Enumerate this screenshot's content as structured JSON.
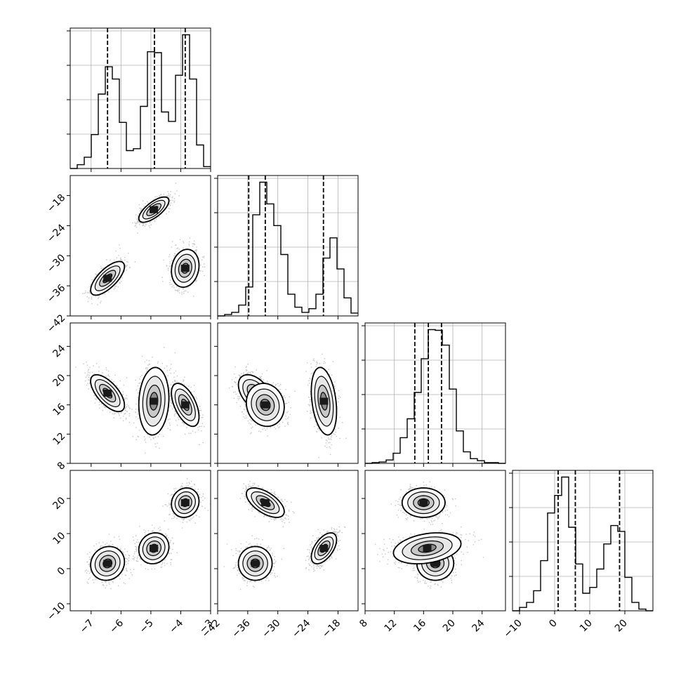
{
  "chart_data": {
    "type": "corner",
    "grid": true,
    "parameters": [
      {
        "ticks": [
          -7,
          -6,
          -5,
          -4,
          -3
        ],
        "tick_labels": [
          "−7",
          "−6",
          "−5",
          "−4",
          "−3"
        ],
        "range": [
          -7.7,
          -3.0
        ],
        "quantiles": [
          -6.45,
          -4.88,
          -3.85
        ],
        "histogram": {
          "edges_start": -7.7,
          "bin_width": 0.235,
          "counts": [
            0,
            0.04,
            0.12,
            0.36,
            0.79,
            1.08,
            0.95,
            0.49,
            0.19,
            0.21,
            0.66,
            1.24,
            1.23,
            0.6,
            0.5,
            0.99,
            1.42,
            0.95,
            0.25,
            0.02
          ]
        }
      },
      {
        "ticks": [
          -42,
          -36,
          -30,
          -24,
          -18
        ],
        "tick_labels": [
          "−42",
          "−36",
          "−30",
          "−24",
          "−18"
        ],
        "range": [
          -42.0,
          -14.0
        ],
        "quantiles": [
          -35.8,
          -32.5,
          -20.9
        ],
        "histogram": {
          "edges_start": -42.0,
          "bin_width": 1.4,
          "counts": [
            0,
            0.02,
            0.05,
            0.15,
            0.4,
            1.4,
            1.85,
            1.55,
            1.25,
            0.85,
            0.3,
            0.12,
            0.05,
            0.1,
            0.3,
            0.8,
            1.08,
            0.65,
            0.25,
            0.04
          ]
        }
      },
      {
        "ticks": [
          8,
          12,
          16,
          20,
          24
        ],
        "tick_labels": [
          "8",
          "12",
          "16",
          "20",
          "24"
        ],
        "range": [
          8.0,
          27.2
        ],
        "quantiles": [
          14.8,
          16.65,
          18.45
        ],
        "histogram": {
          "edges_start": 8.0,
          "bin_width": 0.96,
          "counts": [
            0,
            0.01,
            0.02,
            0.05,
            0.15,
            0.38,
            0.66,
            1.05,
            1.55,
            1.98,
            1.97,
            1.75,
            1.1,
            0.48,
            0.17,
            0.07,
            0.04,
            0.01,
            0.01,
            0
          ]
        }
      },
      {
        "ticks": [
          -10,
          0,
          10,
          20
        ],
        "tick_labels": [
          "−10",
          "0",
          "10",
          "20"
        ],
        "range": [
          -12.0,
          28.0
        ],
        "quantiles": [
          1.0,
          5.9,
          18.5
        ],
        "histogram": {
          "edges_start": -12.0,
          "bin_width": 2.0,
          "counts": [
            0,
            0.04,
            0.1,
            0.24,
            0.6,
            1.17,
            1.38,
            1.6,
            1.0,
            0.56,
            0.21,
            0.28,
            0.5,
            0.8,
            1.02,
            0.95,
            0.4,
            0.1,
            0.02,
            0
          ]
        }
      }
    ],
    "clusters": [
      {
        "weight": 0.33,
        "mean": [
          -6.45,
          -34.5,
          17.6,
          1.5
        ],
        "std": [
          0.27,
          1.6,
          1.2,
          2.3
        ]
      },
      {
        "weight": 0.34,
        "mean": [
          -4.9,
          -20.8,
          16.5,
          5.8
        ],
        "std": [
          0.24,
          1.2,
          2.2,
          2.1
        ]
      },
      {
        "weight": 0.33,
        "mean": [
          -3.85,
          -32.5,
          16.0,
          18.8
        ],
        "std": [
          0.22,
          1.8,
          1.4,
          2.0
        ]
      }
    ]
  }
}
